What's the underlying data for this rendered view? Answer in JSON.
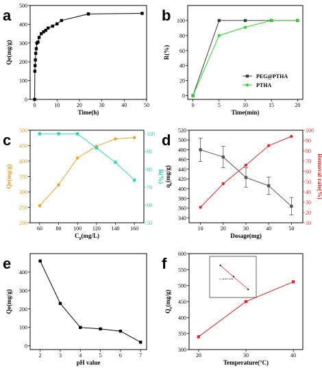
{
  "chart_data": [
    {
      "panel": "a",
      "type": "scatter",
      "xlabel": "Time(h)",
      "ylabel": "Qe(mg/g)",
      "xlim": [
        -2,
        50
      ],
      "ylim": [
        0,
        500
      ],
      "xticks": [
        0,
        10,
        20,
        30,
        40,
        50
      ],
      "yticks": [
        0,
        100,
        200,
        300,
        400,
        500
      ],
      "series": [
        {
          "color": "#000000",
          "marker": "square",
          "line": true,
          "x": [
            0,
            0.1,
            0.2,
            0.33,
            0.5,
            0.75,
            1,
            1.5,
            2,
            3,
            4,
            5,
            6,
            8,
            10,
            12,
            24,
            48
          ],
          "y": [
            0,
            150,
            180,
            210,
            245,
            270,
            300,
            305,
            330,
            350,
            360,
            368,
            380,
            390,
            402,
            420,
            455,
            458
          ]
        }
      ],
      "grid": false
    },
    {
      "panel": "b",
      "type": "line",
      "xlabel": "Time(min)",
      "ylabel": "R(%)",
      "xlim": [
        -1,
        21
      ],
      "ylim": [
        -5,
        120
      ],
      "xticks": [
        0,
        5,
        10,
        15,
        20
      ],
      "yticks": [
        0,
        20,
        40,
        60,
        80,
        100
      ],
      "legend_position": "bottom-right",
      "series": [
        {
          "name": "PEG@PTHA",
          "color": "#3c3c3c",
          "marker": "square",
          "x": [
            0,
            5,
            10,
            15,
            20
          ],
          "y": [
            0,
            100,
            100,
            100,
            100
          ]
        },
        {
          "name": "PTHA",
          "color": "#22dd22",
          "marker": "circle",
          "x": [
            0,
            5,
            10,
            15,
            20
          ],
          "y": [
            0,
            80,
            91,
            100,
            100
          ]
        }
      ],
      "grid": false
    },
    {
      "panel": "c",
      "type": "line",
      "xlabel": "C0(mg/L)",
      "xlabel_main": "C",
      "xlabel_sub": "0",
      "xlabel_rest": "(mg/L)",
      "ylabel": "Qe(mg/g)",
      "y2label": "R(%)",
      "xlim": [
        50,
        170
      ],
      "ylim": [
        200,
        500
      ],
      "y2lim": [
        50,
        102
      ],
      "xticks": [
        60,
        80,
        100,
        120,
        140,
        160
      ],
      "yticks": [
        200,
        250,
        300,
        350,
        400,
        450,
        500
      ],
      "y2ticks": [
        50,
        60,
        70,
        80,
        90,
        100
      ],
      "series": [
        {
          "axis": "left",
          "color": "#f0a020",
          "marker": "circle",
          "x": [
            60,
            80,
            100,
            120,
            140,
            160
          ],
          "y": [
            255,
            323,
            410,
            448,
            472,
            476
          ]
        },
        {
          "axis": "right",
          "color": "#2bd9b8",
          "marker": "square",
          "x": [
            60,
            80,
            100,
            120,
            140,
            160
          ],
          "y": [
            100,
            100,
            100,
            92,
            84,
            74
          ]
        }
      ],
      "grid": false
    },
    {
      "panel": "d",
      "type": "line",
      "xlabel": "Dosage(mg)",
      "ylabel": "qe(mg/g)",
      "ylabel_main": "q",
      "ylabel_sub": "e",
      "ylabel_rest": "(mg/g)",
      "y2label": "Removal rate(%)",
      "xlim": [
        5,
        55
      ],
      "ylim": [
        330,
        520
      ],
      "y2lim": [
        10,
        100
      ],
      "xticks": [
        10,
        20,
        30,
        40,
        50
      ],
      "yticks": [
        340,
        360,
        380,
        400,
        420,
        440,
        460,
        480,
        500,
        520
      ],
      "y2ticks": [
        10,
        20,
        30,
        40,
        50,
        60,
        70,
        80,
        90,
        100
      ],
      "series": [
        {
          "axis": "left",
          "color": "#555555",
          "marker": "square",
          "x": [
            10,
            20,
            30,
            40,
            50
          ],
          "y": [
            480,
            465,
            423,
            406,
            364
          ],
          "error": [
            24,
            22,
            20,
            18,
            18
          ]
        },
        {
          "axis": "right",
          "color": "#ee2222",
          "marker": "circle",
          "x": [
            10,
            20,
            30,
            40,
            50
          ],
          "y": [
            25,
            48,
            66,
            85,
            94
          ]
        }
      ],
      "grid": false
    },
    {
      "panel": "e",
      "type": "line",
      "xlabel": "pH value",
      "ylabel": "Qe(mg/g)",
      "xlim": [
        1.5,
        7.3
      ],
      "ylim": [
        -20,
        500
      ],
      "xticks": [
        2,
        3,
        4,
        5,
        6,
        7
      ],
      "yticks": [
        0,
        100,
        200,
        300,
        400
      ],
      "series": [
        {
          "color": "#000000",
          "marker": "square",
          "x": [
            2,
            3,
            4,
            5,
            6,
            7
          ],
          "y": [
            460,
            230,
            100,
            92,
            80,
            20
          ]
        }
      ],
      "grid": false
    },
    {
      "panel": "f",
      "type": "line",
      "xlabel": "Temperature(°C)",
      "ylabel": "Qe(mg/g)",
      "ylabel_main": "Q",
      "ylabel_sub": "e",
      "ylabel_rest": "(mg/g)",
      "xlim": [
        18,
        42
      ],
      "ylim": [
        300,
        600
      ],
      "xticks": [
        20,
        30,
        40
      ],
      "yticks": [
        300,
        350,
        400,
        450,
        500,
        550,
        600
      ],
      "series": [
        {
          "color": "#ee2222",
          "marker": "square",
          "x": [
            20,
            30,
            40
          ],
          "y": [
            340,
            450,
            512
          ]
        }
      ],
      "inset": {
        "equation": "y=-4274x+16.38",
        "x": [
          0.0032,
          0.0033,
          0.00341
        ],
        "y": [
          2.95,
          2.61,
          2.22
        ]
      },
      "grid": false
    }
  ]
}
